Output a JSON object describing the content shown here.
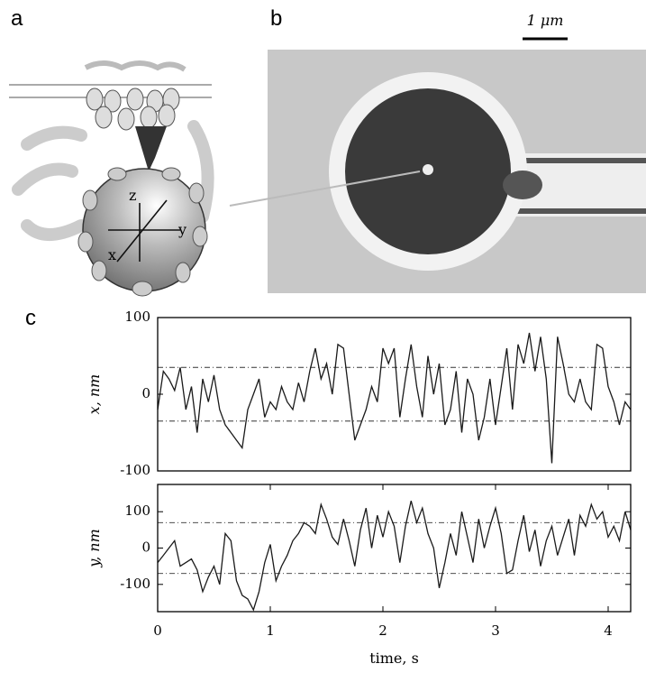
{
  "panel_labels": [
    "a",
    "b",
    "c"
  ],
  "scale_bar": "1 μm",
  "bead_axes": [
    "z",
    "y",
    "x"
  ],
  "chart_data": [
    {
      "type": "line",
      "ylabel": "x, nm",
      "color": "#1a1a1a",
      "x": [
        0,
        0.05,
        0.1,
        0.15,
        0.2,
        0.25,
        0.3,
        0.35,
        0.4,
        0.45,
        0.5,
        0.55,
        0.6,
        0.65,
        0.7,
        0.75,
        0.8,
        0.85,
        0.9,
        0.95,
        1,
        1.05,
        1.1,
        1.15,
        1.2,
        1.25,
        1.3,
        1.35,
        1.4,
        1.45,
        1.5,
        1.55,
        1.6,
        1.65,
        1.7,
        1.75,
        1.8,
        1.85,
        1.9,
        1.95,
        2,
        2.05,
        2.1,
        2.15,
        2.2,
        2.25,
        2.3,
        2.35,
        2.4,
        2.45,
        2.5,
        2.55,
        2.6,
        2.65,
        2.7,
        2.75,
        2.8,
        2.85,
        2.9,
        2.95,
        3,
        3.05,
        3.1,
        3.15,
        3.2,
        3.25,
        3.3,
        3.35,
        3.4,
        3.45,
        3.5,
        3.55,
        3.6,
        3.65,
        3.7,
        3.75,
        3.8,
        3.85,
        3.9,
        3.95,
        4,
        4.05,
        4.1,
        4.15,
        4.2
      ],
      "values": [
        -20,
        30,
        20,
        5,
        35,
        -20,
        10,
        -50,
        20,
        -10,
        25,
        -20,
        -40,
        -50,
        -60,
        -70,
        -20,
        0,
        20,
        -30,
        -10,
        -20,
        10,
        -10,
        -20,
        15,
        -10,
        30,
        60,
        20,
        40,
        0,
        65,
        60,
        0,
        -60,
        -40,
        -20,
        10,
        -10,
        60,
        40,
        60,
        -30,
        20,
        65,
        10,
        -30,
        50,
        0,
        40,
        -40,
        -20,
        30,
        -50,
        20,
        0,
        -60,
        -30,
        20,
        -40,
        10,
        60,
        -20,
        65,
        40,
        80,
        30,
        75,
        20,
        -90,
        75,
        40,
        0,
        -10,
        20,
        -10,
        -20,
        65,
        60,
        10,
        -10,
        -40,
        -10,
        -20
      ],
      "xlim": [
        0,
        4.2
      ],
      "ylim": [
        -100,
        100
      ],
      "yticks": [
        -100,
        0,
        100
      ],
      "hlines": [
        35,
        -35
      ]
    },
    {
      "type": "line",
      "ylabel": "y, nm",
      "xlabel": "time, s",
      "color": "#1a1a1a",
      "x": [
        0,
        0.05,
        0.1,
        0.15,
        0.2,
        0.25,
        0.3,
        0.35,
        0.4,
        0.45,
        0.5,
        0.55,
        0.6,
        0.65,
        0.7,
        0.75,
        0.8,
        0.85,
        0.9,
        0.95,
        1,
        1.05,
        1.1,
        1.15,
        1.2,
        1.25,
        1.3,
        1.35,
        1.4,
        1.45,
        1.5,
        1.55,
        1.6,
        1.65,
        1.7,
        1.75,
        1.8,
        1.85,
        1.9,
        1.95,
        2,
        2.05,
        2.1,
        2.15,
        2.2,
        2.25,
        2.3,
        2.35,
        2.4,
        2.45,
        2.5,
        2.55,
        2.6,
        2.65,
        2.7,
        2.75,
        2.8,
        2.85,
        2.9,
        2.95,
        3,
        3.05,
        3.1,
        3.15,
        3.2,
        3.25,
        3.3,
        3.35,
        3.4,
        3.45,
        3.5,
        3.55,
        3.6,
        3.65,
        3.7,
        3.75,
        3.8,
        3.85,
        3.9,
        3.95,
        4,
        4.05,
        4.1,
        4.15,
        4.2
      ],
      "values": [
        -40,
        -20,
        0,
        20,
        -50,
        -40,
        -30,
        -60,
        -120,
        -80,
        -50,
        -100,
        40,
        20,
        -90,
        -130,
        -140,
        -170,
        -120,
        -40,
        10,
        -90,
        -50,
        -20,
        20,
        40,
        70,
        60,
        40,
        120,
        80,
        30,
        10,
        80,
        20,
        -50,
        50,
        110,
        0,
        90,
        30,
        100,
        60,
        -40,
        60,
        130,
        70,
        110,
        40,
        0,
        -110,
        -40,
        40,
        -20,
        100,
        30,
        -40,
        80,
        0,
        60,
        110,
        40,
        -70,
        -60,
        20,
        90,
        -10,
        50,
        -50,
        20,
        60,
        -20,
        30,
        80,
        -20,
        90,
        60,
        120,
        80,
        100,
        30,
        60,
        20,
        100,
        50
      ],
      "xlim": [
        0,
        4.2
      ],
      "xticks": [
        0,
        1,
        2,
        3,
        4
      ],
      "ylim": [
        -175,
        175
      ],
      "yticks": [
        -100,
        0,
        100
      ],
      "hlines": [
        70,
        -70
      ]
    }
  ]
}
